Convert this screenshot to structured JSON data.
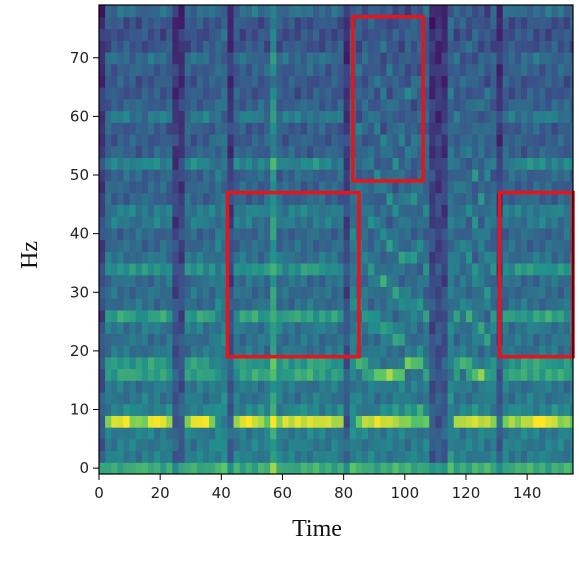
{
  "chart_data": {
    "type": "heatmap",
    "title": "",
    "xlabel": "Time",
    "ylabel": "Hz",
    "xlim": [
      0,
      155
    ],
    "ylim": [
      -1,
      79
    ],
    "xticks": [
      "0",
      "20",
      "40",
      "60",
      "80",
      "100",
      "120",
      "140"
    ],
    "yticks": [
      "0",
      "10",
      "20",
      "30",
      "40",
      "50",
      "60",
      "70"
    ],
    "colormap": "viridis",
    "grid": false,
    "highlight_color": "#e8141c",
    "highlight_regions": [
      {
        "name": "region-mid-frequency-left",
        "x": [
          42,
          85
        ],
        "y": [
          19,
          47
        ]
      },
      {
        "name": "region-high-frequency",
        "x": [
          83,
          106
        ],
        "y": [
          49,
          77
        ]
      },
      {
        "name": "region-mid-frequency-right",
        "x": [
          131,
          155
        ],
        "y": [
          19,
          47
        ]
      }
    ]
  }
}
